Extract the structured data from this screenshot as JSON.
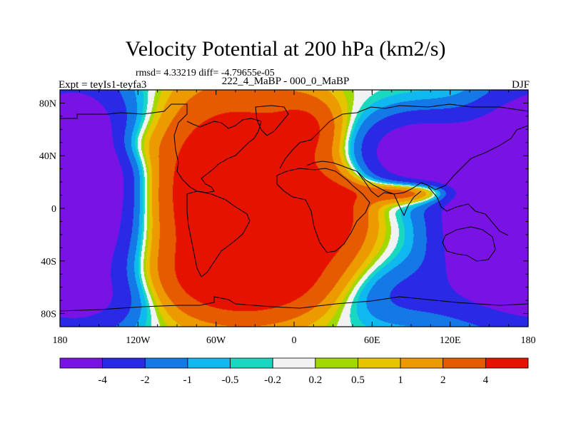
{
  "title": "Velocity Potential at 200 hPa (km2/s)",
  "subtitle_stats": "rmsd= 4.33219 diff= -4.79655e-05",
  "left_label": "Expt = teyIs1-teyfa3",
  "center_label": "222_4_MaBP - 000_0_MaBP",
  "right_label": "DJF",
  "chart_data": {
    "type": "heatmap",
    "title": "Velocity Potential at 200 hPa (km2/s)",
    "units": "km2/s",
    "xlim": [
      -180,
      180
    ],
    "ylim": [
      -90,
      90
    ],
    "x_ticks": [
      {
        "value": -180,
        "label": "180"
      },
      {
        "value": -120,
        "label": "120W"
      },
      {
        "value": -60,
        "label": "60W"
      },
      {
        "value": 0,
        "label": "0"
      },
      {
        "value": 60,
        "label": "60E"
      },
      {
        "value": 120,
        "label": "120E"
      },
      {
        "value": 180,
        "label": "180"
      }
    ],
    "y_ticks": [
      {
        "value": 80,
        "label": "80N"
      },
      {
        "value": 40,
        "label": "40N"
      },
      {
        "value": 0,
        "label": "0"
      },
      {
        "value": -40,
        "label": "40S"
      },
      {
        "value": -80,
        "label": "80S"
      }
    ],
    "colorbar": {
      "levels": [
        "-4",
        "-2",
        "-1",
        "-0.5",
        "-0.2",
        "0.2",
        "0.5",
        "1",
        "2",
        "4"
      ],
      "colors": [
        "#7a12e6",
        "#2a2ae6",
        "#1478e6",
        "#10b8f0",
        "#18d8c0",
        "#f2f2f2",
        "#a0d800",
        "#e6c400",
        "#ec9a00",
        "#e65a00",
        "#e61200"
      ]
    },
    "field_regions": [
      {
        "name": "central Pacific negative",
        "lon": -160,
        "lat": 15,
        "value": -5
      },
      {
        "name": "western Pacific negative",
        "lon": 140,
        "lat": -15,
        "value": -5
      },
      {
        "name": "Asian negative",
        "lon": 100,
        "lat": 40,
        "value": -4.5
      },
      {
        "name": "Americas-Atlantic positive",
        "lon": -40,
        "lat": 20,
        "value": 5
      },
      {
        "name": "South Atlantic positive",
        "lon": -30,
        "lat": -55,
        "value": 5
      },
      {
        "name": "Africa positive",
        "lon": 20,
        "lat": 0,
        "value": 4.5
      },
      {
        "name": "Indian Ocean positive tongue",
        "lon": 95,
        "lat": 12,
        "value": 3.5
      }
    ]
  }
}
